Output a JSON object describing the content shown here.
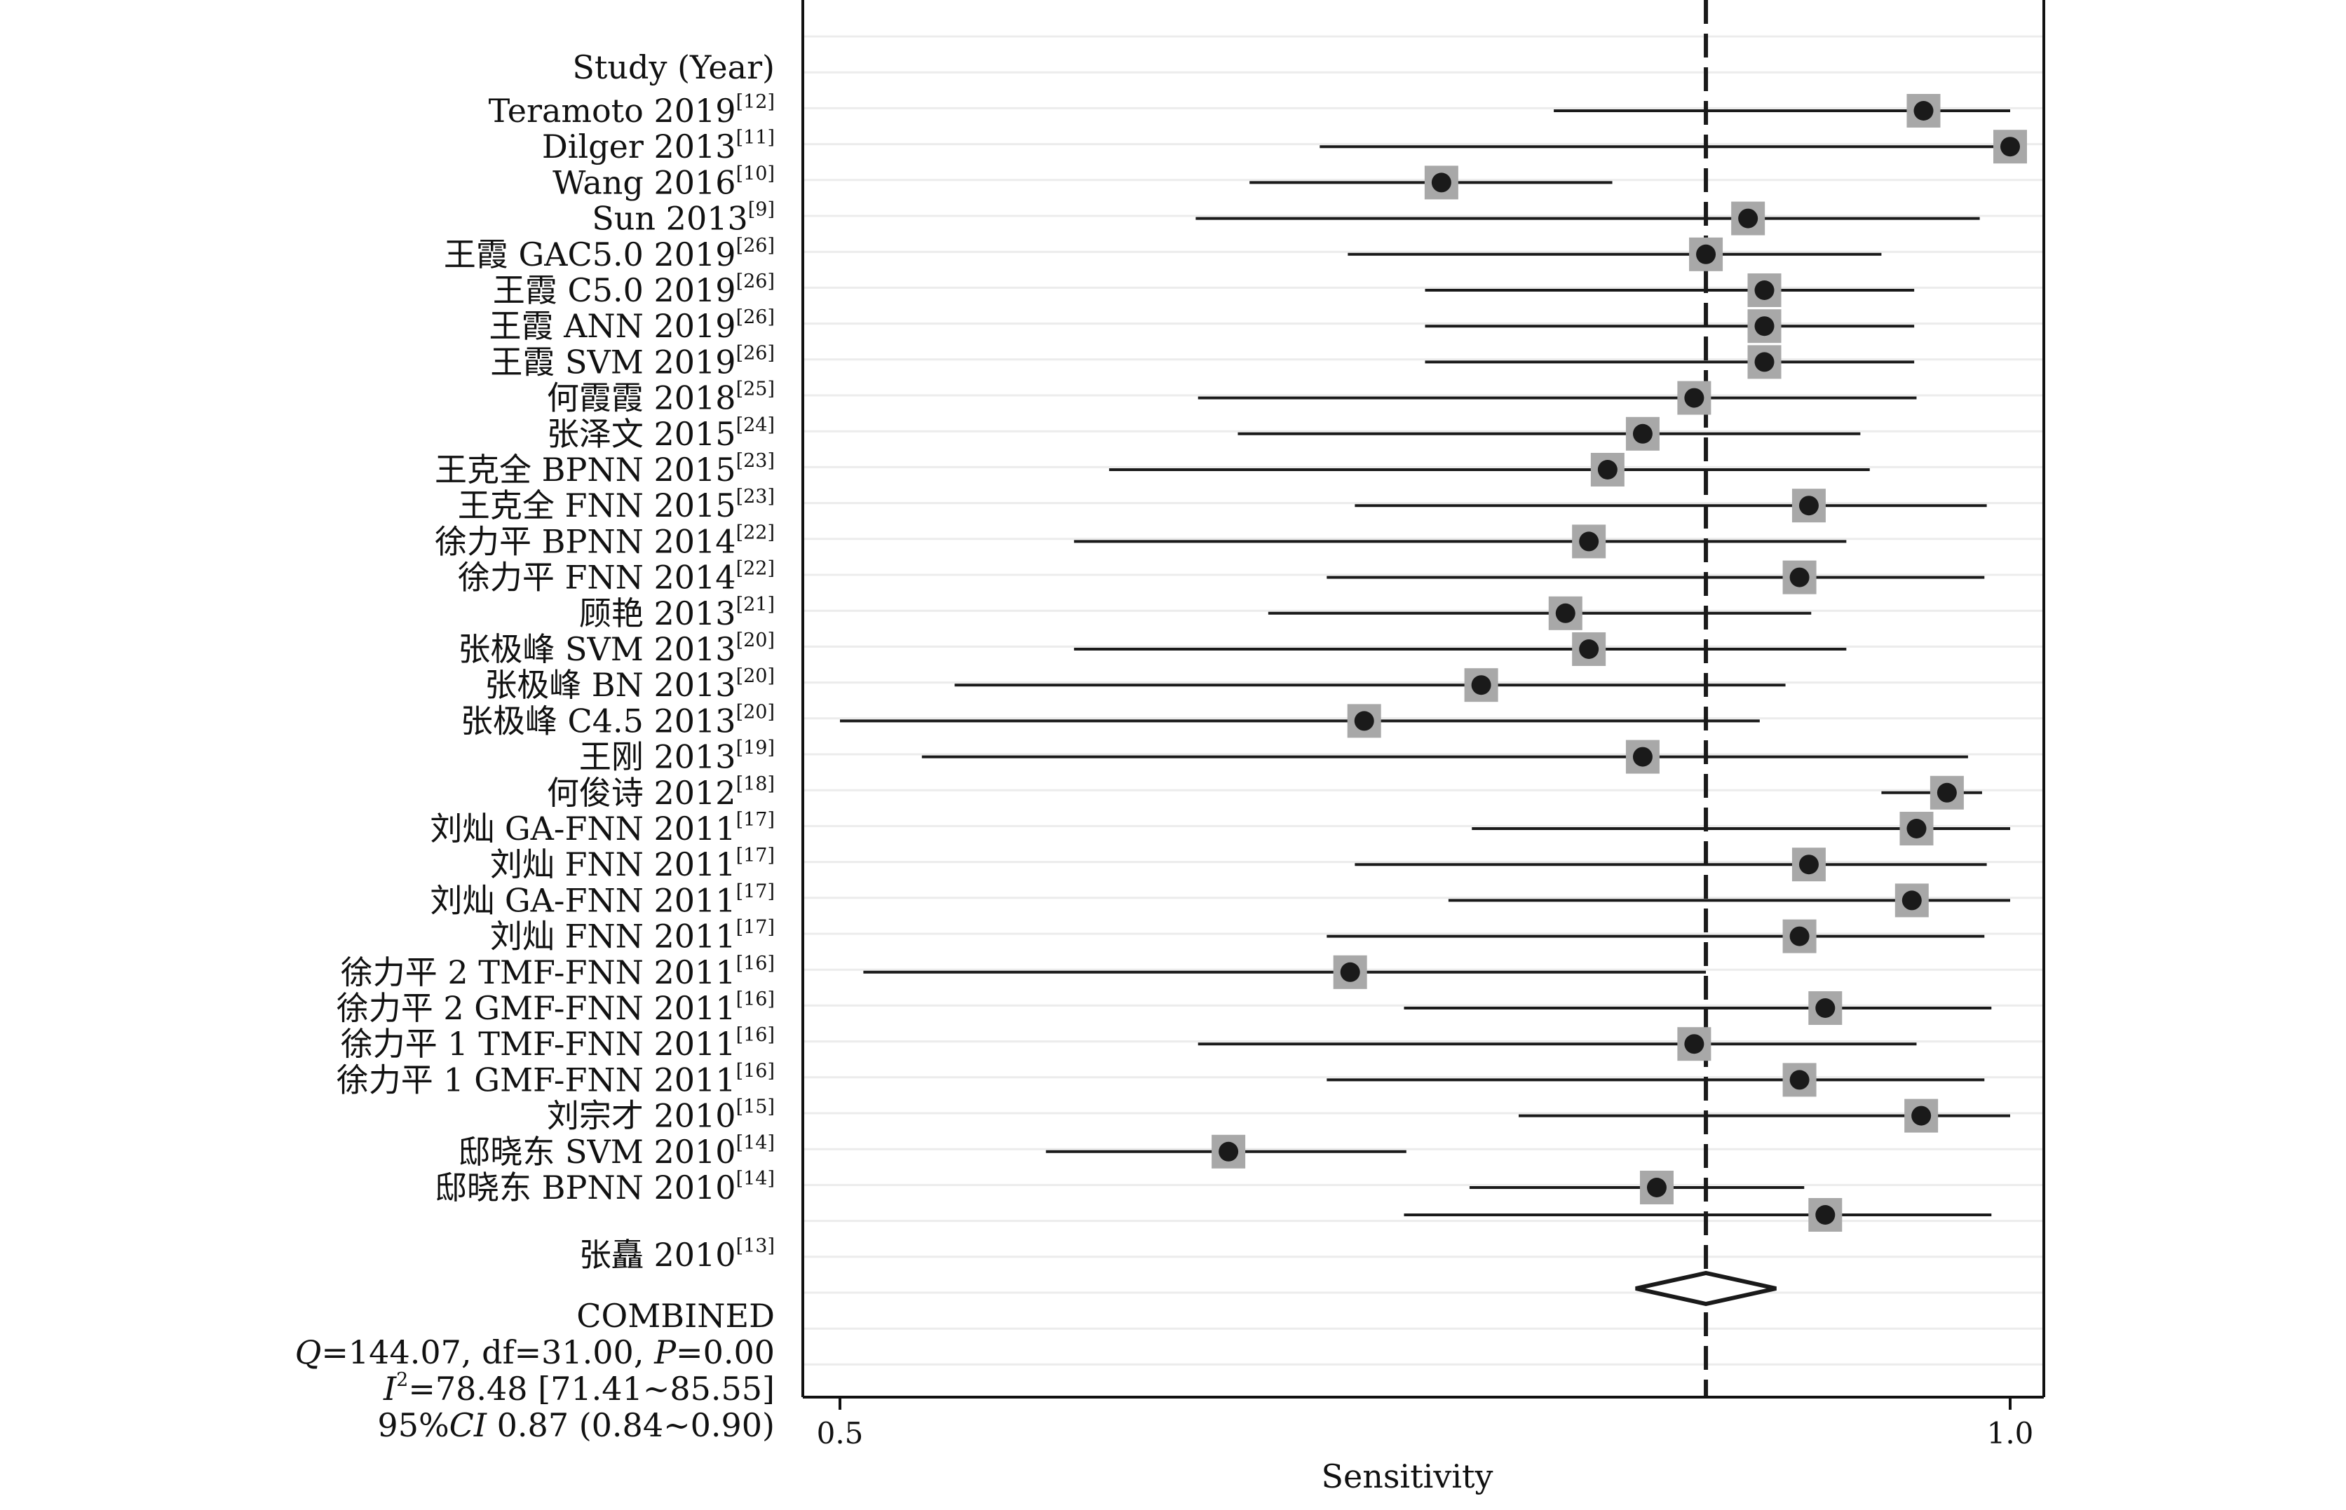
{
  "chart_data": {
    "type": "forest",
    "xlabel": "Sensitivity",
    "xlim": [
      0.5,
      1.0
    ],
    "ticks": [
      {
        "v": 0.5,
        "label": "0.5"
      },
      {
        "v": 1.0,
        "label": "1.0"
      }
    ],
    "reference_value": 0.87,
    "header": "Study (Year)",
    "studies": [
      {
        "name": "Teramoto 2019",
        "ref": "[12]",
        "est": 0.963,
        "lo": 0.805,
        "hi": 1.0
      },
      {
        "name": "Dilger 2013",
        "ref": "[11]",
        "est": 1.0,
        "lo": 0.705,
        "hi": 1.0
      },
      {
        "name": "Wang 2016",
        "ref": "[10]",
        "est": 0.757,
        "lo": 0.675,
        "hi": 0.83
      },
      {
        "name": "Sun 2013",
        "ref": "[9]",
        "est": 0.888,
        "lo": 0.652,
        "hi": 0.987
      },
      {
        "name": "王霞 GAC5.0 2019",
        "ref": "[26]",
        "est": 0.87,
        "lo": 0.717,
        "hi": 0.945
      },
      {
        "name": "王霞 C5.0 2019",
        "ref": "[26]",
        "est": 0.895,
        "lo": 0.75,
        "hi": 0.959
      },
      {
        "name": "王霞 ANN 2019",
        "ref": "[26]",
        "est": 0.895,
        "lo": 0.75,
        "hi": 0.959
      },
      {
        "name": "王霞 SVM 2019",
        "ref": "[26]",
        "est": 0.895,
        "lo": 0.75,
        "hi": 0.959
      },
      {
        "name": "何霞霞 2018",
        "ref": "[25]",
        "est": 0.865,
        "lo": 0.653,
        "hi": 0.96
      },
      {
        "name": "张泽文 2015",
        "ref": "[24]",
        "est": 0.843,
        "lo": 0.67,
        "hi": 0.936
      },
      {
        "name": "王克全 BPNN 2015",
        "ref": "[23]",
        "est": 0.828,
        "lo": 0.615,
        "hi": 0.94
      },
      {
        "name": "王克全 FNN 2015",
        "ref": "[23]",
        "est": 0.914,
        "lo": 0.72,
        "hi": 0.99
      },
      {
        "name": "徐力平 BPNN 2014",
        "ref": "[22]",
        "est": 0.82,
        "lo": 0.6,
        "hi": 0.93
      },
      {
        "name": "徐力平 FNN 2014",
        "ref": "[22]",
        "est": 0.91,
        "lo": 0.708,
        "hi": 0.989
      },
      {
        "name": "顾艳 2013",
        "ref": "[21]",
        "est": 0.81,
        "lo": 0.683,
        "hi": 0.915
      },
      {
        "name": "张极峰 SVM 2013",
        "ref": "[20]",
        "est": 0.82,
        "lo": 0.6,
        "hi": 0.93
      },
      {
        "name": "张极峰 BN 2013",
        "ref": "[20]",
        "est": 0.774,
        "lo": 0.549,
        "hi": 0.904
      },
      {
        "name": "张极峰 C4.5 2013",
        "ref": "[20]",
        "est": 0.724,
        "lo": 0.5,
        "hi": 0.893
      },
      {
        "name": "王刚 2013",
        "ref": "[19]",
        "est": 0.843,
        "lo": 0.535,
        "hi": 0.982
      },
      {
        "name": "何俊诗 2012",
        "ref": "[18]",
        "est": 0.973,
        "lo": 0.945,
        "hi": 0.988
      },
      {
        "name": "刘灿 GA-FNN 2011",
        "ref": "[17]",
        "est": 0.96,
        "lo": 0.77,
        "hi": 1.0
      },
      {
        "name": "刘灿 FNN 2011",
        "ref": "[17]",
        "est": 0.914,
        "lo": 0.72,
        "hi": 0.99
      },
      {
        "name": "刘灿 GA-FNN 2011",
        "ref": "[17]",
        "est": 0.958,
        "lo": 0.76,
        "hi": 1.0
      },
      {
        "name": "刘灿 FNN 2011",
        "ref": "[17]",
        "est": 0.91,
        "lo": 0.708,
        "hi": 0.989
      },
      {
        "name": "徐力平 2 TMF-FNN 2011",
        "ref": "[16]",
        "est": 0.718,
        "lo": 0.51,
        "hi": 0.87
      },
      {
        "name": "徐力平 2 GMF-FNN 2011",
        "ref": "[16]",
        "est": 0.921,
        "lo": 0.741,
        "hi": 0.992
      },
      {
        "name": "徐力平 1 TMF-FNN 2011",
        "ref": "[16]",
        "est": 0.865,
        "lo": 0.653,
        "hi": 0.96
      },
      {
        "name": "徐力平 1 GMF-FNN 2011",
        "ref": "[16]",
        "est": 0.91,
        "lo": 0.708,
        "hi": 0.989
      },
      {
        "name": "刘宗才 2010",
        "ref": "[15]",
        "est": 0.962,
        "lo": 0.79,
        "hi": 1.0
      },
      {
        "name": "邸晓东 SVM 2010",
        "ref": "[14]",
        "est": 0.666,
        "lo": 0.588,
        "hi": 0.742
      },
      {
        "name": "邸晓东 BPNN 2010",
        "ref": "[14]",
        "est": 0.849,
        "lo": 0.769,
        "hi": 0.912
      },
      {
        "name": "张矗 2010",
        "ref": "[13]",
        "est": 0.921,
        "lo": 0.741,
        "hi": 0.992
      }
    ],
    "combined": {
      "est": 0.87,
      "lo": 0.84,
      "hi": 0.9,
      "label": "COMBINED",
      "q_label": "Q",
      "q_text": "=144.07, df=31.00, ",
      "p_label": "P",
      "p_text": "=0.00",
      "i2_label": "I",
      "i2_sup": "2",
      "i2_text": "=78.48 [71.41~85.55]",
      "ci_prefix": "95%",
      "ci_label": "CI",
      "ci_text": " 0.87 (0.84~0.90)"
    },
    "colors": {
      "marker": "#1a1a1a",
      "box": "#a8a8a8",
      "grid": "#ececec",
      "frame": "#111111"
    }
  }
}
